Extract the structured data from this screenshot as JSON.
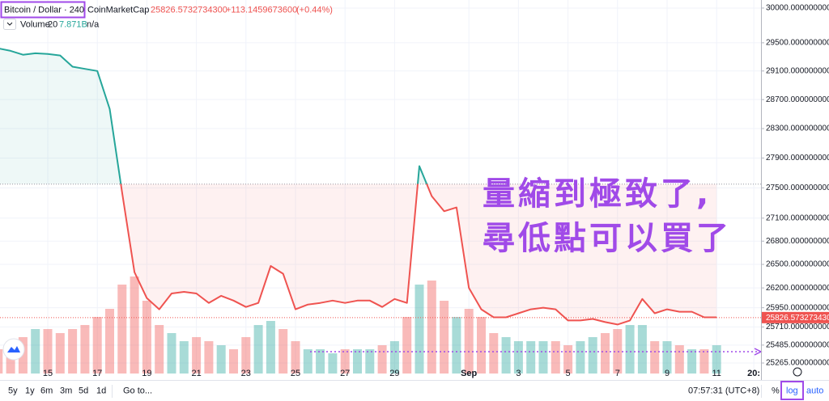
{
  "chart_data": {
    "type": "line",
    "title": "Bitcoin / Dollar · 240",
    "source": "CoinMarketCap",
    "last_price": {
      "value": 25826.57327343,
      "label": "25826.5732734300"
    },
    "change": "+113.1459673600",
    "change_pct": "(+0.44%)",
    "categories": [
      null,
      null,
      null,
      null,
      "15",
      null,
      null,
      null,
      "17",
      null,
      null,
      null,
      "19",
      null,
      null,
      null,
      "21",
      null,
      null,
      null,
      "23",
      null,
      null,
      null,
      "25",
      null,
      null,
      null,
      "27",
      null,
      null,
      null,
      "29",
      null,
      null,
      null,
      null,
      null,
      "Sep",
      null,
      null,
      null,
      "3",
      null,
      null,
      null,
      "5",
      null,
      null,
      null,
      "7",
      null,
      null,
      null,
      "9",
      null,
      null,
      null,
      "11",
      null,
      null,
      "20:"
    ],
    "series": [
      {
        "color_above": "#26a69a",
        "color_below": "#ef5350",
        "values": [
          29420,
          29385,
          29330,
          29350,
          29340,
          29320,
          29160,
          29130,
          29100,
          28570,
          27440,
          26400,
          26070,
          25930,
          26130,
          26150,
          26130,
          26010,
          26100,
          26040,
          25960,
          26010,
          26480,
          26380,
          25930,
          25990,
          26010,
          26040,
          26010,
          26040,
          26040,
          25960,
          26060,
          26010,
          27790,
          27390,
          27190,
          27240,
          26200,
          25930,
          25830,
          25830,
          25880,
          25930,
          25950,
          25930,
          25790,
          25790,
          25810,
          25770,
          25740,
          25790,
          26060,
          25880,
          25930,
          25900,
          25900,
          25830,
          25830,
          null,
          null,
          null
        ]
      }
    ],
    "baseline": 27550,
    "log_scale": true,
    "grid": true,
    "ylim": [
      25137,
      30117
    ],
    "yticks": [
      {
        "value": 30000,
        "label": "30000.0000000000"
      },
      {
        "value": 29500,
        "label": "29500.0000000000"
      },
      {
        "value": 29100,
        "label": "29100.0000000000"
      },
      {
        "value": 28700,
        "label": "28700.0000000000"
      },
      {
        "value": 28300,
        "label": "28300.0000000000"
      },
      {
        "value": 27900,
        "label": "27900.0000000000"
      },
      {
        "value": 27500,
        "label": "27500.0000000000"
      },
      {
        "value": 27100,
        "label": "27100.0000000000"
      },
      {
        "value": 26800,
        "label": "26800.0000000000"
      },
      {
        "value": 26500,
        "label": "26500.0000000000"
      },
      {
        "value": 26200,
        "label": "26200.0000000000"
      },
      {
        "value": 25950,
        "label": "25950.0000000000"
      },
      {
        "value": 25710,
        "label": "25710.0000000000"
      },
      {
        "value": 25485,
        "label": "25485.0000000000"
      },
      {
        "value": 25265,
        "label": "25265.0000000000"
      }
    ],
    "volume": {
      "name": "Volume",
      "period": 20,
      "ma_value": "7.871B",
      "ma_last": "n/a",
      "ylim": [
        0,
        20
      ],
      "up_color": "#26a69a",
      "down_color": "#ef5350",
      "values": [
        3,
        4,
        4.5,
        5.5,
        5.5,
        5,
        5.5,
        6,
        7,
        8,
        11,
        12,
        9,
        6,
        5,
        4,
        4.5,
        4,
        3.5,
        3,
        4.5,
        6,
        6.5,
        5.5,
        4,
        3,
        3,
        2.5,
        3,
        3,
        3,
        3.5,
        4,
        7,
        11,
        11.5,
        9,
        7,
        8,
        7,
        5,
        4.5,
        4,
        4,
        4,
        4,
        3.5,
        4,
        4.5,
        5,
        5.5,
        6,
        6,
        4,
        4,
        3.5,
        3,
        3,
        3.5,
        null,
        null,
        null
      ]
    },
    "annotation": [
      "量縮到極致了,",
      "尋低點可以買了"
    ]
  },
  "toolbar": {
    "ranges": [
      "5y",
      "1y",
      "6m",
      "3m",
      "5d",
      "1d"
    ],
    "goto": "Go to...",
    "time": "07:57:31 (UTC+8)",
    "percent": "%",
    "log": "log",
    "auto": "auto"
  }
}
